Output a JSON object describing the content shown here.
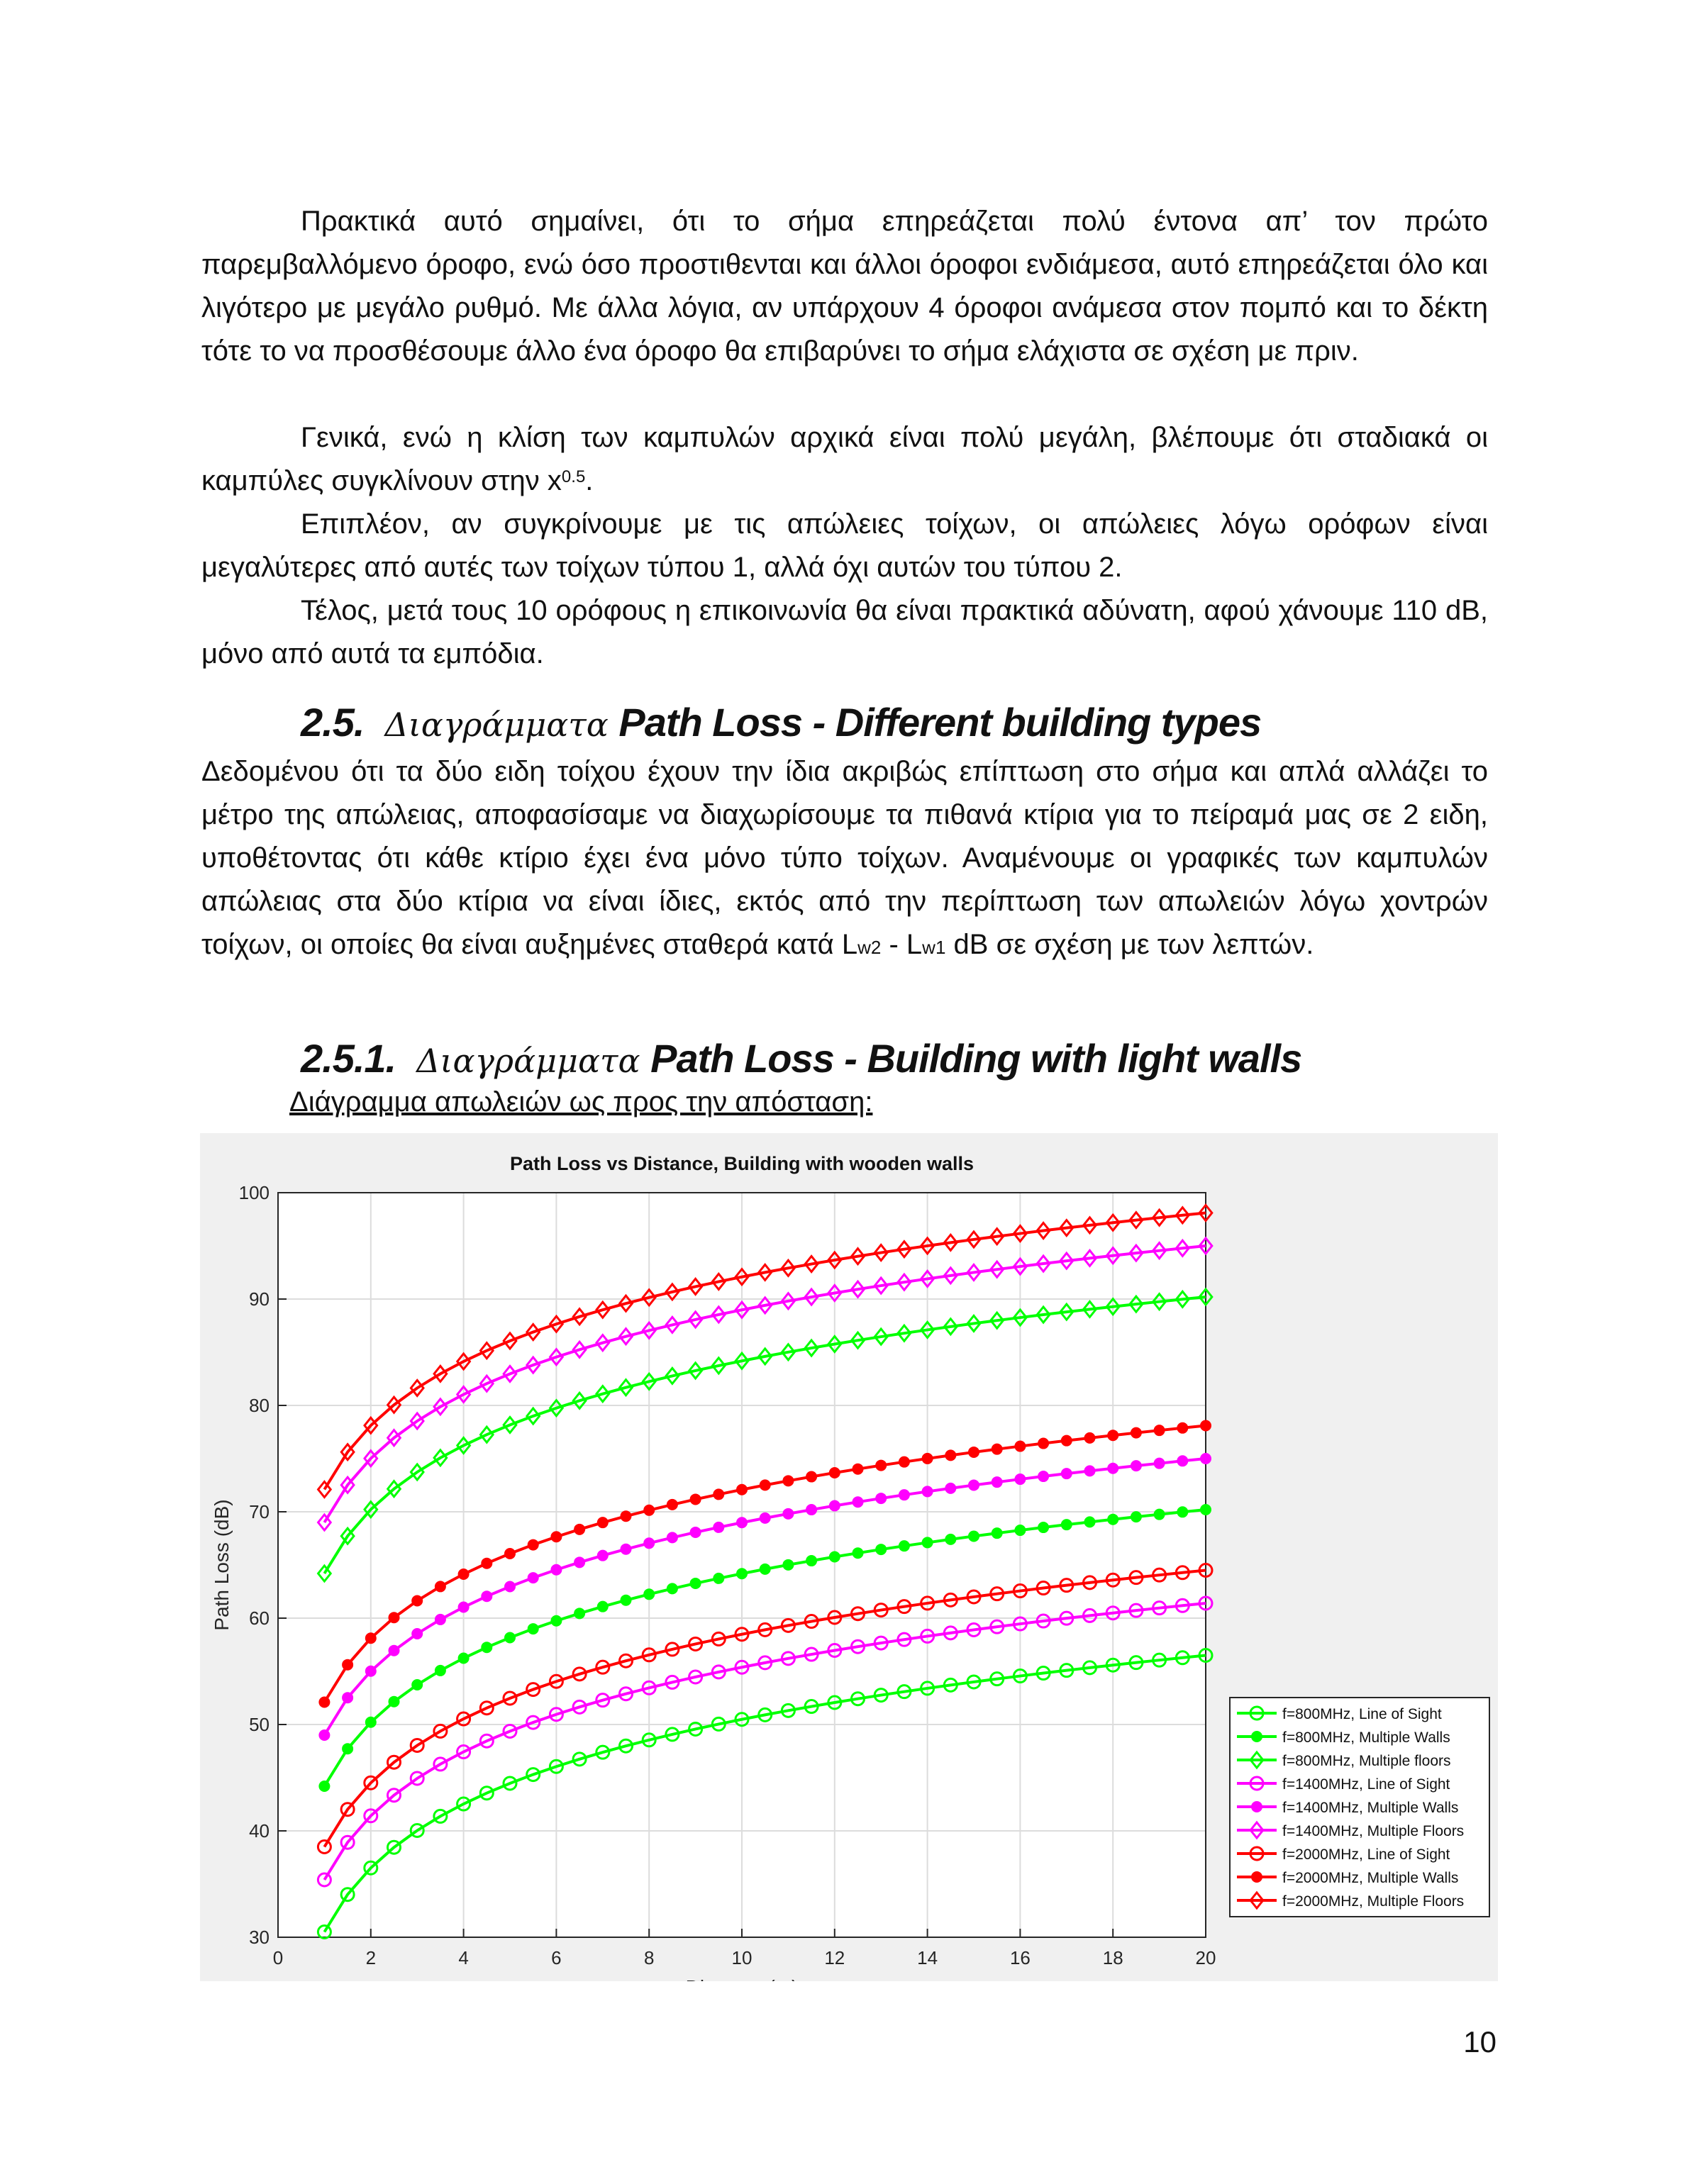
{
  "paragraphs": {
    "p1": "Πρακτικά αυτό σημαίνει, ότι το σήμα επηρεάζεται πολύ έντονα απ’ τον πρώτο παρεμβαλλόμενο όροφο, ενώ όσο προστιθενται και άλλοι όροφοι ενδιάμεσα, αυτό επηρεάζεται όλο και λιγότερο με μεγάλο ρυθμό. Με άλλα λόγια, αν υπάρχουν 4 όροφοι ανάμεσα στον πομπό και το δέκτη τότε το να προσθέσουμε άλλο ένα όροφο θα επιβαρύνει το σήμα ελάχιστα σε σχέση με πριν.",
    "p2_main": "Γενικά, ενώ η κλίση των καμπυλών αρχικά είναι πολύ μεγάλη, βλέπουμε ότι σταδιακά οι καμπύλες συγκλίνουν στην x",
    "p2_sup": "0.5",
    "p2_end": ".",
    "p3": "Επιπλέον, αν συγκρίνουμε με τις απώλειες τοίχων, οι απώλειες λόγω ορόφων είναι μεγαλύτερες από αυτές των τοίχων τύπου 1, αλλά όχι αυτών του τύπου 2.",
    "p4": "Τέλος, μετά τους 10 ορόφους η επικοινωνία θα είναι πρακτικά αδύνατη, αφού χάνουμε 110 dB, μόνο από αυτά τα εμπόδια.",
    "p5_main": "Δεδομένου ότι τα δύο ειδη τοίχου έχουν την ίδια ακριβώς επίπτωση στο σήμα και απλά αλλάζει το μέτρο της απώλειας, αποφασίσαμε να διαχωρίσουμε τα πιθανά κτίρια για το πείραμά μας σε 2 ειδη, υποθέτοντας ότι κάθε κτίριο έχει ένα μόνο τύπο τοίχων. Αναμένουμε οι γραφικές των καμπυλών απώλειας στα δύο κτίρια να είναι ίδιες, εκτός από την περίπτωση των απωλειών λόγω χοντρών τοίχων, οι οποίες θα είναι αυξημένες σταθερά κατά L",
    "p5_sub1": "w2",
    "p5_mid": " - L",
    "p5_sub2": "w1",
    "p5_end": " dB σε σχέση με των λεπτών."
  },
  "headings": {
    "h25_num": "2.5.",
    "h25_greek": "Διαγράμματα",
    "h25_rest": "Path Loss - Different building types",
    "h251_num": "2.5.1.",
    "h251_greek": "Διαγράμματα",
    "h251_rest": "Path Loss - Building with light walls"
  },
  "chart_caption": "Διάγραμμα απωλειών ως προς την απόσταση:",
  "page_number": "10",
  "chart_data": {
    "type": "line",
    "title": "Path Loss vs Distance, Building with wooden walls",
    "xlabel": "Distance (m)",
    "ylabel": "Path Loss (dB)",
    "xlim": [
      0,
      20
    ],
    "ylim": [
      30,
      100
    ],
    "xticks": [
      0,
      2,
      4,
      6,
      8,
      10,
      12,
      14,
      16,
      18,
      20
    ],
    "yticks": [
      30,
      40,
      50,
      60,
      70,
      80,
      90,
      100
    ],
    "grid": true,
    "legend_position": "bottom-right",
    "x": [
      1,
      1.5,
      2,
      2.5,
      3,
      3.5,
      4,
      4.5,
      5,
      5.5,
      6,
      6.5,
      7,
      7.5,
      8,
      8.5,
      9,
      9.5,
      10,
      10.5,
      11,
      11.5,
      12,
      12.5,
      13,
      13.5,
      14,
      14.5,
      15,
      15.5,
      16,
      16.5,
      17,
      17.5,
      18,
      18.5,
      19,
      19.5,
      20
    ],
    "series": [
      {
        "name": "f=800MHz, Line of Sight",
        "color": "#00ff00",
        "marker": "circle",
        "y_at_1m": 30.5,
        "y_at_20m": 56.5
      },
      {
        "name": "f=800MHz, Multiple Walls",
        "color": "#00ff00",
        "marker": "dot",
        "y_at_1m": 44.2,
        "y_at_20m": 70.2
      },
      {
        "name": "f=800MHz, Multiple floors",
        "color": "#00ff00",
        "marker": "diamond",
        "y_at_1m": 64.2,
        "y_at_20m": 90.2
      },
      {
        "name": "f=1400MHz, Line of Sight",
        "color": "#ff00ff",
        "marker": "circle",
        "y_at_1m": 35.4,
        "y_at_20m": 61.4
      },
      {
        "name": "f=1400MHz, Multiple Walls",
        "color": "#ff00ff",
        "marker": "dot",
        "y_at_1m": 49.0,
        "y_at_20m": 75.0
      },
      {
        "name": "f=1400MHz, Multiple Floors",
        "color": "#ff00ff",
        "marker": "diamond",
        "y_at_1m": 69.0,
        "y_at_20m": 95.0
      },
      {
        "name": "f=2000MHz, Line of Sight",
        "color": "#ff0000",
        "marker": "circle",
        "y_at_1m": 38.5,
        "y_at_20m": 64.5
      },
      {
        "name": "f=2000MHz, Multiple Walls",
        "color": "#ff0000",
        "marker": "dot",
        "y_at_1m": 52.1,
        "y_at_20m": 78.1
      },
      {
        "name": "f=2000MHz, Multiple Floors",
        "color": "#ff0000",
        "marker": "diamond",
        "y_at_1m": 72.1,
        "y_at_20m": 98.1
      }
    ]
  }
}
